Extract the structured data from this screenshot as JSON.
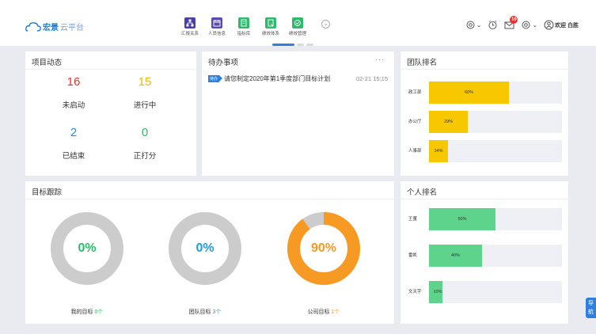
{
  "header": {
    "logo_brand": "宏景",
    "logo_sub": "云平台",
    "nav": [
      {
        "label": "汇报关系",
        "icon": "org-chart-icon",
        "color": "#4a3fa8"
      },
      {
        "label": "人员信息",
        "icon": "calendar-icon",
        "color": "#5a4bb0"
      },
      {
        "label": "指标库",
        "icon": "document-icon",
        "color": "#2fb96a"
      },
      {
        "label": "绩效体系",
        "icon": "report-icon",
        "color": "#2fb96a"
      },
      {
        "label": "绩效管理",
        "icon": "target-check-icon",
        "color": "#2fb96a"
      }
    ],
    "message_count": "10",
    "welcome": "欢迎 白胜"
  },
  "project_status": {
    "title": "项目动态",
    "items": [
      {
        "value": "16",
        "label": "未启动",
        "color": "#e8312f"
      },
      {
        "value": "15",
        "label": "进行中",
        "color": "#f5b800"
      },
      {
        "value": "2",
        "label": "已结束",
        "color": "#1f8fe8"
      },
      {
        "value": "0",
        "label": "正打分",
        "color": "#2fb96a"
      }
    ]
  },
  "todo": {
    "title": "待办事项",
    "more": "···",
    "items": [
      {
        "tag": "待办",
        "text": "请您制定2020年第1季度部门目标计划",
        "time": "02-21 15:15"
      }
    ]
  },
  "team_rank": {
    "title": "团队排名",
    "color": "#f7c700",
    "items": [
      {
        "name": "政工部",
        "value": 60,
        "label": "60%"
      },
      {
        "name": "办公厅",
        "value": 29,
        "label": "29%"
      },
      {
        "name": "人事部",
        "value": 14,
        "label": "14%"
      }
    ]
  },
  "goal_tracking": {
    "title": "目标跟踪",
    "items": [
      {
        "percent": 0,
        "label": "0%",
        "text": "我的目标",
        "count": "0个",
        "color": "#2fb96a"
      },
      {
        "percent": 0,
        "label": "0%",
        "text": "团队目标",
        "count": "3个",
        "color": "#1f9de0"
      },
      {
        "percent": 90,
        "label": "90%",
        "text": "公司目标",
        "count": "1个",
        "color": "#f79a23"
      }
    ]
  },
  "personal_rank": {
    "title": "个人排名",
    "color": "#5ed38c",
    "items": [
      {
        "name": "王董",
        "value": 50,
        "label": "50%"
      },
      {
        "name": "雷凯",
        "value": 40,
        "label": "40%"
      },
      {
        "name": "文天宇",
        "value": 10,
        "label": "10%"
      }
    ]
  },
  "side_nav": {
    "label": "导航"
  }
}
